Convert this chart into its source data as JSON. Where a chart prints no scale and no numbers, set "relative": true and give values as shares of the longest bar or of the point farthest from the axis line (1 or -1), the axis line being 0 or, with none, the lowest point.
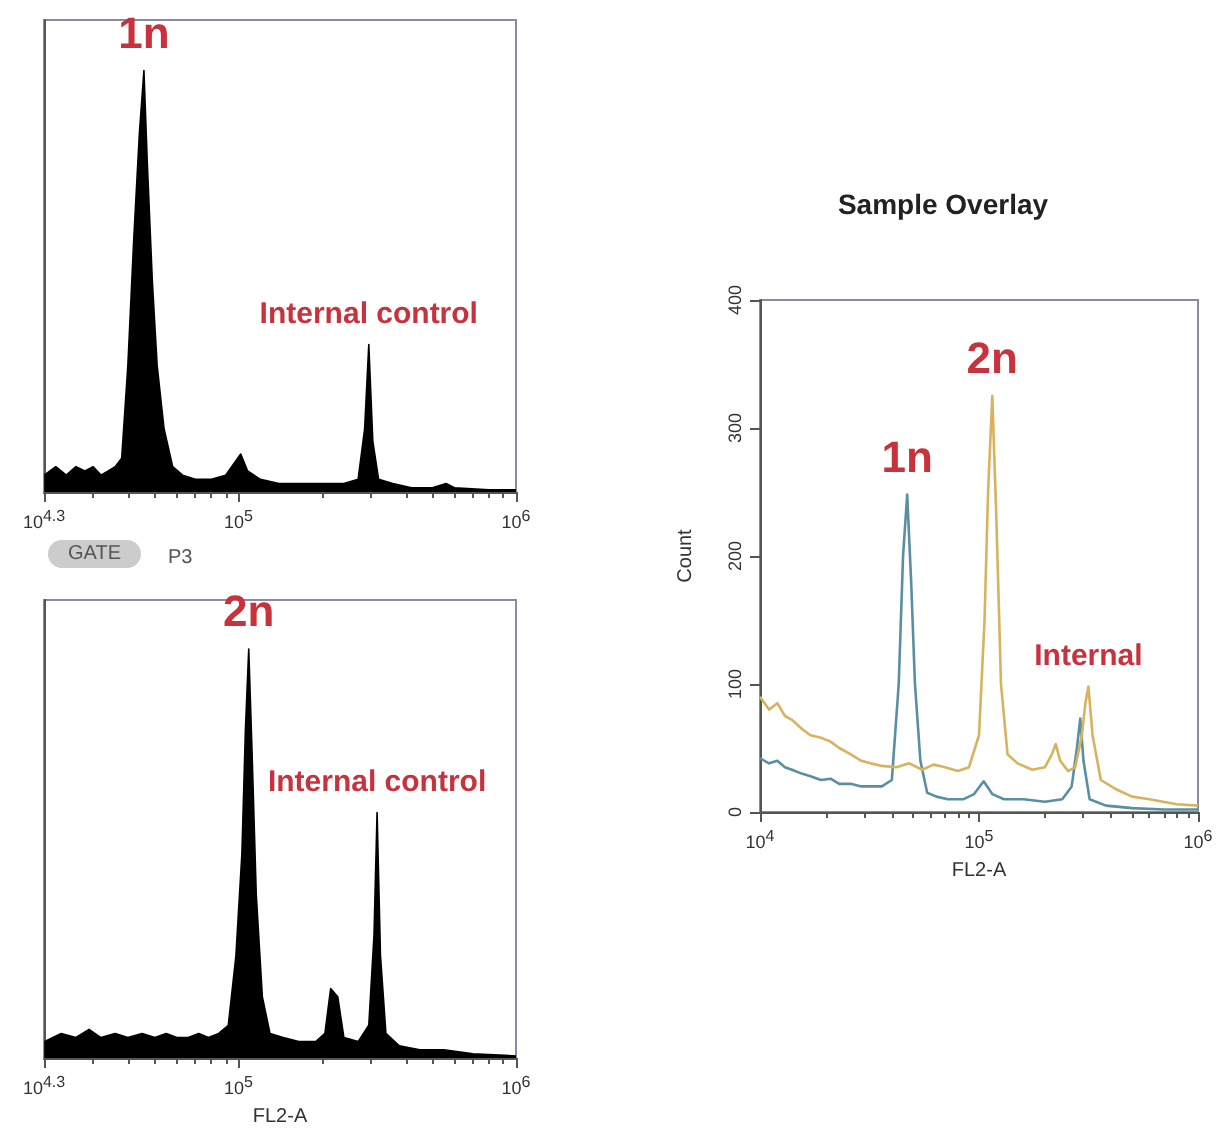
{
  "chart_data": [
    {
      "type": "area",
      "relative": true,
      "xlim": [
        19953,
        1000000
      ],
      "xticks": [
        {
          "value": 19953,
          "label": "10$^{4.3}$"
        },
        {
          "value": 100000,
          "label": "10$^{5}$"
        },
        {
          "value": 1000000,
          "label": "10$^{6}$"
        }
      ],
      "log": "x",
      "series": [
        {
          "color": "#000000",
          "x": [
            20000,
            22000,
            24000,
            26000,
            28000,
            30000,
            32000,
            34000,
            36000,
            38000,
            40000,
            42000,
            44000,
            45700,
            47000,
            49000,
            51000,
            54000,
            58000,
            63000,
            70000,
            80000,
            90000,
            97000,
            102000,
            108000,
            120000,
            140000,
            170000,
            200000,
            240000,
            270000,
            285000,
            295000,
            305000,
            320000,
            360000,
            420000,
            500000,
            560000,
            600000,
            800000,
            1000000
          ],
          "values": [
            0.04,
            0.06,
            0.04,
            0.06,
            0.05,
            0.06,
            0.04,
            0.05,
            0.06,
            0.08,
            0.3,
            0.6,
            0.85,
            1,
            0.78,
            0.5,
            0.3,
            0.15,
            0.06,
            0.04,
            0.03,
            0.03,
            0.04,
            0.07,
            0.09,
            0.05,
            0.03,
            0.02,
            0.02,
            0.02,
            0.02,
            0.03,
            0.15,
            0.35,
            0.12,
            0.03,
            0.02,
            0.01,
            0.01,
            0.02,
            0.01,
            0.005,
            0.005
          ]
        }
      ],
      "annotations": [
        {
          "text": "1n",
          "x": 45700,
          "y": 1
        },
        {
          "text": "Internal control",
          "x": 295000,
          "y": 0.35
        },
        "GATE",
        "P3"
      ]
    },
    {
      "type": "area",
      "relative": true,
      "xlabel": "FL2-A",
      "xlim": [
        19953,
        1000000
      ],
      "xticks": [
        {
          "value": 19953,
          "label": "10$^{4.3}$"
        },
        {
          "value": 100000,
          "label": "10$^{5}$"
        },
        {
          "value": 1000000,
          "label": "10$^{6}$"
        }
      ],
      "log": "x",
      "series": [
        {
          "color": "#000000",
          "x": [
            20000,
            23000,
            26000,
            29000,
            32000,
            36000,
            40000,
            45000,
            50000,
            55000,
            60000,
            66000,
            72000,
            78000,
            85000,
            92000,
            98000,
            103000,
            106000,
            109000,
            112000,
            116000,
            122000,
            130000,
            145000,
            165000,
            190000,
            205000,
            215000,
            228000,
            240000,
            270000,
            295000,
            308000,
            316000,
            325000,
            340000,
            380000,
            450000,
            550000,
            700000,
            1000000
          ],
          "values": [
            0.04,
            0.06,
            0.05,
            0.07,
            0.05,
            0.06,
            0.05,
            0.06,
            0.05,
            0.06,
            0.05,
            0.05,
            0.06,
            0.05,
            0.06,
            0.08,
            0.25,
            0.5,
            0.8,
            1,
            0.75,
            0.4,
            0.15,
            0.06,
            0.05,
            0.04,
            0.04,
            0.06,
            0.17,
            0.15,
            0.05,
            0.04,
            0.08,
            0.3,
            0.6,
            0.25,
            0.06,
            0.03,
            0.02,
            0.02,
            0.01,
            0.005
          ]
        }
      ],
      "annotations": [
        {
          "text": "2n",
          "x": 109000,
          "y": 1
        },
        {
          "text": "Internal control",
          "x": 316000,
          "y": 0.6
        }
      ]
    },
    {
      "type": "line",
      "title": "Sample Overlay",
      "xlabel": "FL2-A",
      "ylabel": "Count",
      "xlim": [
        10000,
        1000000
      ],
      "xticks": [
        {
          "value": 10000,
          "label": "10$^{4}$"
        },
        {
          "value": 100000,
          "label": "10$^{5}$"
        },
        {
          "value": 1000000,
          "label": "10$^{6}$"
        }
      ],
      "ylim": [
        0,
        400
      ],
      "yticks": [
        0,
        100,
        200,
        300,
        400
      ],
      "log": "x",
      "series": [
        {
          "color": "#5a8fa3",
          "x": [
            10000,
            11000,
            12000,
            13000,
            14000,
            15500,
            17000,
            19000,
            21000,
            23000,
            26000,
            29000,
            32000,
            36000,
            40000,
            43000,
            45000,
            47000,
            49000,
            51000,
            54000,
            58000,
            64000,
            72000,
            85000,
            95000,
            105000,
            115000,
            130000,
            160000,
            200000,
            240000,
            265000,
            280000,
            290000,
            300000,
            320000,
            380000,
            500000,
            700000,
            1000000
          ],
          "values": [
            42,
            38,
            40,
            35,
            33,
            30,
            28,
            25,
            26,
            22,
            22,
            20,
            20,
            20,
            25,
            100,
            200,
            248,
            180,
            100,
            40,
            15,
            12,
            10,
            10,
            14,
            24,
            14,
            10,
            10,
            8,
            10,
            20,
            50,
            73,
            40,
            10,
            5,
            3,
            2,
            2
          ]
        },
        {
          "color": "#d8b25e",
          "x": [
            10000,
            11000,
            12000,
            13000,
            14000,
            15500,
            17000,
            19000,
            21000,
            23000,
            26000,
            29000,
            32000,
            36000,
            42000,
            48000,
            55000,
            62000,
            70000,
            80000,
            90000,
            100000,
            106000,
            110000,
            115000,
            120000,
            126000,
            135000,
            150000,
            175000,
            200000,
            215000,
            224000,
            235000,
            255000,
            275000,
            295000,
            306000,
            316000,
            330000,
            360000,
            420000,
            500000,
            600000,
            800000,
            1000000
          ],
          "values": [
            90,
            80,
            85,
            75,
            72,
            65,
            60,
            58,
            55,
            50,
            45,
            40,
            38,
            36,
            35,
            38,
            33,
            37,
            35,
            32,
            35,
            60,
            150,
            250,
            325,
            230,
            100,
            45,
            38,
            33,
            35,
            45,
            53,
            40,
            32,
            35,
            60,
            85,
            98,
            60,
            25,
            18,
            12,
            10,
            6,
            5
          ]
        }
      ],
      "annotations": [
        {
          "text": "1n",
          "x": 47000,
          "y": 248
        },
        {
          "text": "2n",
          "x": 115000,
          "y": 325
        },
        {
          "text": "Internal",
          "x": 316000,
          "y": 98
        }
      ]
    }
  ]
}
